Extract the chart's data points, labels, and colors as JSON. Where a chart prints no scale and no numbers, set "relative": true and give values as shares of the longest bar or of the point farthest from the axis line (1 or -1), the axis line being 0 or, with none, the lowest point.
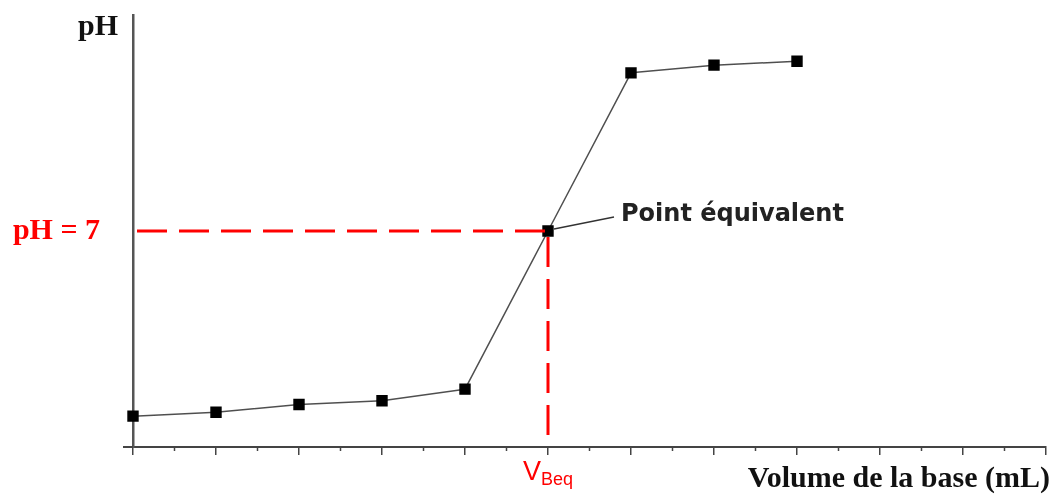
{
  "chart_data": {
    "type": "line",
    "xlabel": "Volume de la base (mL)",
    "ylabel": "pH",
    "categories": [
      null,
      null,
      null,
      null,
      null,
      null,
      null,
      null,
      null,
      null,
      null,
      null
    ],
    "values": [
      0.08,
      0.09,
      0.11,
      0.12,
      0.15,
      0.56,
      0.97,
      0.99,
      1,
      null,
      null,
      null
    ],
    "relative": true,
    "color": "#000000",
    "marker": "square",
    "line_style": "solid",
    "ref_lines": [
      {
        "axis": "y",
        "value": 0.56,
        "color": "#ff0000",
        "line_style": "dashed"
      }
    ],
    "annotations": [
      "pH = 7",
      "V$_{Beq}$",
      "Point équivalent"
    ]
  }
}
